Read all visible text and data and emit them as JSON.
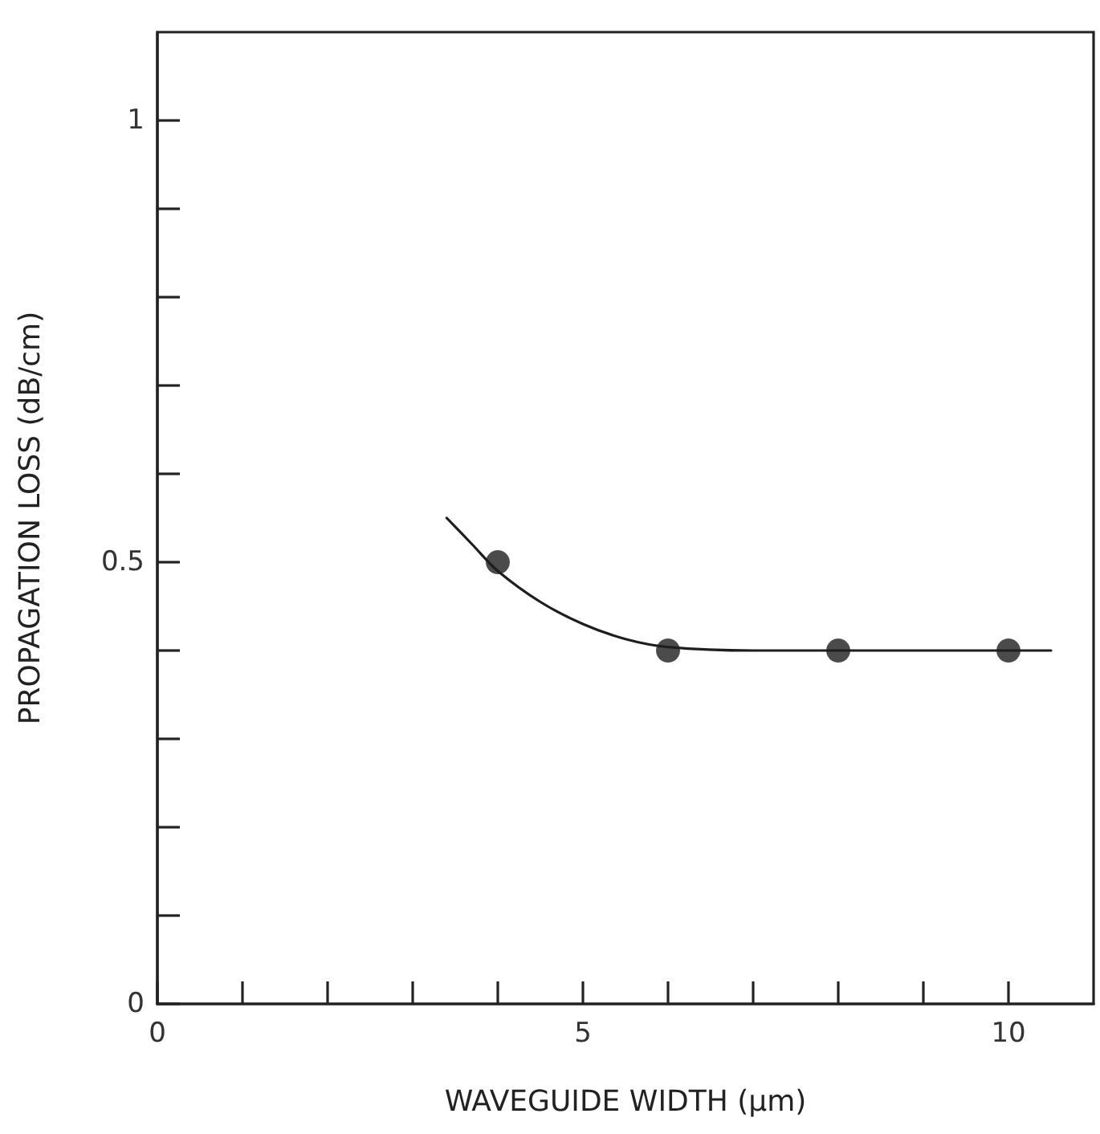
{
  "chart_data": {
    "type": "scatter",
    "xlabel": "WAVEGUIDE WIDTH (µm)",
    "ylabel": "PROPAGATION LOSS (dB/cm)",
    "xlim": [
      0,
      11
    ],
    "ylim": [
      0,
      1.1
    ],
    "xticks": [
      0,
      {
        "value": 1,
        "label": null
      },
      {
        "value": 2,
        "label": null
      },
      {
        "value": 3,
        "label": null
      },
      {
        "value": 4,
        "label": null
      },
      5,
      {
        "value": 6,
        "label": null
      },
      {
        "value": 7,
        "label": null
      },
      {
        "value": 8,
        "label": null
      },
      {
        "value": 9,
        "label": null
      },
      10
    ],
    "yticks": [
      0,
      {
        "value": 0.1,
        "label": null
      },
      {
        "value": 0.2,
        "label": null
      },
      {
        "value": 0.3,
        "label": null
      },
      {
        "value": 0.4,
        "label": null
      },
      0.5,
      {
        "value": 0.6,
        "label": null
      },
      {
        "value": 0.7,
        "label": null
      },
      {
        "value": 0.8,
        "label": null
      },
      {
        "value": 0.9,
        "label": null
      },
      1
    ],
    "grid": false,
    "series": [
      {
        "marker": "circle",
        "color": "#1e1e1e",
        "x": [
          4,
          6,
          8,
          10
        ],
        "values": [
          0.5,
          0.4,
          0.4,
          0.4
        ]
      },
      {
        "type": "line",
        "marker": "none",
        "line_style": "solid",
        "color": "#1e1e1e",
        "x": [
          3.4,
          3.7,
          4,
          4.5,
          5,
          5.5,
          6,
          7,
          8,
          9,
          10,
          10.5
        ],
        "values": [
          0.55,
          0.52,
          0.49,
          0.455,
          0.43,
          0.413,
          0.404,
          0.4,
          0.4,
          0.4,
          0.4,
          0.4
        ]
      }
    ]
  }
}
